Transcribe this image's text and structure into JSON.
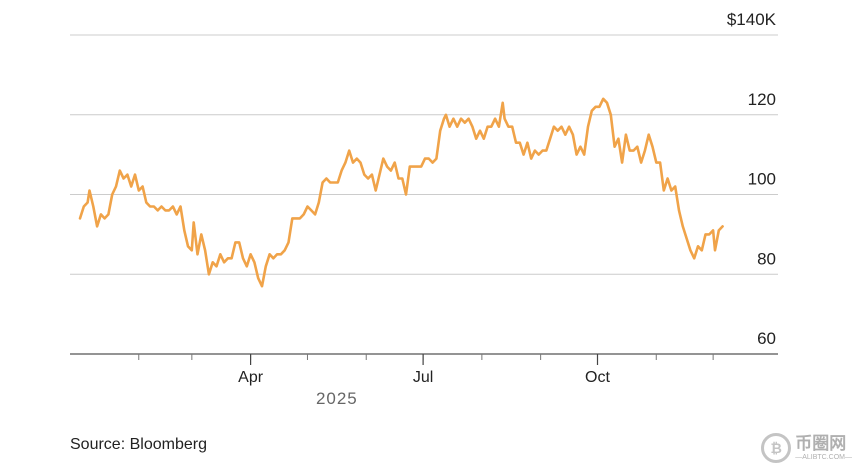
{
  "chart_data": {
    "type": "line",
    "title": "",
    "xlabel": "",
    "ylabel": "",
    "y_unit_prefix": "$",
    "y_unit_suffix": "K",
    "ylim": [
      60,
      140
    ],
    "yticks": [
      60,
      80,
      100,
      120,
      140
    ],
    "ytick_labels": [
      "60",
      "80",
      "100",
      "120",
      "$140K"
    ],
    "grid": true,
    "x_start": "2025-01-01",
    "x_end": "2025-12-31",
    "xtick_labels": [
      "Apr",
      "Jul",
      "Oct"
    ],
    "xtick_dates": [
      "2025-04-01",
      "2025-07-01",
      "2025-10-01"
    ],
    "minor_tick_dates": [
      "2025-02-01",
      "2025-03-01",
      "2025-04-01",
      "2025-05-01",
      "2025-06-01",
      "2025-07-01",
      "2025-08-01",
      "2025-09-01",
      "2025-10-01",
      "2025-11-01",
      "2025-12-01"
    ],
    "year_label": "2025",
    "series": [
      {
        "color": "#f0a349",
        "points": [
          [
            "2025-01-01",
            94
          ],
          [
            "2025-01-03",
            97
          ],
          [
            "2025-01-05",
            98
          ],
          [
            "2025-01-06",
            101
          ],
          [
            "2025-01-08",
            97
          ],
          [
            "2025-01-10",
            92
          ],
          [
            "2025-01-12",
            95
          ],
          [
            "2025-01-14",
            94
          ],
          [
            "2025-01-16",
            95
          ],
          [
            "2025-01-18",
            100
          ],
          [
            "2025-01-20",
            102
          ],
          [
            "2025-01-22",
            106
          ],
          [
            "2025-01-24",
            104
          ],
          [
            "2025-01-26",
            105
          ],
          [
            "2025-01-28",
            102
          ],
          [
            "2025-01-30",
            105
          ],
          [
            "2025-02-01",
            101
          ],
          [
            "2025-02-03",
            102
          ],
          [
            "2025-02-05",
            98
          ],
          [
            "2025-02-07",
            97
          ],
          [
            "2025-02-09",
            97
          ],
          [
            "2025-02-11",
            96
          ],
          [
            "2025-02-13",
            97
          ],
          [
            "2025-02-15",
            96
          ],
          [
            "2025-02-17",
            96
          ],
          [
            "2025-02-19",
            97
          ],
          [
            "2025-02-21",
            95
          ],
          [
            "2025-02-23",
            97
          ],
          [
            "2025-02-25",
            91
          ],
          [
            "2025-02-27",
            87
          ],
          [
            "2025-03-01",
            86
          ],
          [
            "2025-03-02",
            93
          ],
          [
            "2025-03-04",
            85
          ],
          [
            "2025-03-06",
            90
          ],
          [
            "2025-03-08",
            86
          ],
          [
            "2025-03-10",
            80
          ],
          [
            "2025-03-12",
            83
          ],
          [
            "2025-03-14",
            82
          ],
          [
            "2025-03-16",
            85
          ],
          [
            "2025-03-18",
            83
          ],
          [
            "2025-03-20",
            84
          ],
          [
            "2025-03-22",
            84
          ],
          [
            "2025-03-24",
            88
          ],
          [
            "2025-03-26",
            88
          ],
          [
            "2025-03-28",
            84
          ],
          [
            "2025-03-30",
            82
          ],
          [
            "2025-04-01",
            85
          ],
          [
            "2025-04-03",
            83
          ],
          [
            "2025-04-05",
            79
          ],
          [
            "2025-04-07",
            77
          ],
          [
            "2025-04-09",
            82
          ],
          [
            "2025-04-11",
            85
          ],
          [
            "2025-04-13",
            84
          ],
          [
            "2025-04-15",
            85
          ],
          [
            "2025-04-17",
            85
          ],
          [
            "2025-04-19",
            86
          ],
          [
            "2025-04-21",
            88
          ],
          [
            "2025-04-23",
            94
          ],
          [
            "2025-04-25",
            94
          ],
          [
            "2025-04-27",
            94
          ],
          [
            "2025-04-29",
            95
          ],
          [
            "2025-05-01",
            97
          ],
          [
            "2025-05-03",
            96
          ],
          [
            "2025-05-05",
            95
          ],
          [
            "2025-05-07",
            98
          ],
          [
            "2025-05-09",
            103
          ],
          [
            "2025-05-11",
            104
          ],
          [
            "2025-05-13",
            103
          ],
          [
            "2025-05-15",
            103
          ],
          [
            "2025-05-17",
            103
          ],
          [
            "2025-05-19",
            106
          ],
          [
            "2025-05-21",
            108
          ],
          [
            "2025-05-23",
            111
          ],
          [
            "2025-05-25",
            108
          ],
          [
            "2025-05-27",
            109
          ],
          [
            "2025-05-29",
            108
          ],
          [
            "2025-05-31",
            105
          ],
          [
            "2025-06-02",
            104
          ],
          [
            "2025-06-04",
            105
          ],
          [
            "2025-06-06",
            101
          ],
          [
            "2025-06-08",
            105
          ],
          [
            "2025-06-10",
            109
          ],
          [
            "2025-06-12",
            107
          ],
          [
            "2025-06-14",
            106
          ],
          [
            "2025-06-16",
            108
          ],
          [
            "2025-06-18",
            104
          ],
          [
            "2025-06-20",
            104
          ],
          [
            "2025-06-22",
            100
          ],
          [
            "2025-06-24",
            107
          ],
          [
            "2025-06-26",
            107
          ],
          [
            "2025-06-28",
            107
          ],
          [
            "2025-06-30",
            107
          ],
          [
            "2025-07-02",
            109
          ],
          [
            "2025-07-04",
            109
          ],
          [
            "2025-07-06",
            108
          ],
          [
            "2025-07-08",
            109
          ],
          [
            "2025-07-10",
            116
          ],
          [
            "2025-07-12",
            119
          ],
          [
            "2025-07-13",
            120
          ],
          [
            "2025-07-15",
            117
          ],
          [
            "2025-07-17",
            119
          ],
          [
            "2025-07-19",
            117
          ],
          [
            "2025-07-21",
            119
          ],
          [
            "2025-07-23",
            118
          ],
          [
            "2025-07-25",
            119
          ],
          [
            "2025-07-27",
            117
          ],
          [
            "2025-07-29",
            114
          ],
          [
            "2025-07-31",
            116
          ],
          [
            "2025-08-02",
            114
          ],
          [
            "2025-08-04",
            117
          ],
          [
            "2025-08-06",
            117
          ],
          [
            "2025-08-08",
            119
          ],
          [
            "2025-08-10",
            117
          ],
          [
            "2025-08-12",
            123
          ],
          [
            "2025-08-13",
            119
          ],
          [
            "2025-08-15",
            117
          ],
          [
            "2025-08-17",
            117
          ],
          [
            "2025-08-19",
            113
          ],
          [
            "2025-08-21",
            113
          ],
          [
            "2025-08-23",
            110
          ],
          [
            "2025-08-25",
            113
          ],
          [
            "2025-08-27",
            109
          ],
          [
            "2025-08-29",
            111
          ],
          [
            "2025-08-31",
            110
          ],
          [
            "2025-09-02",
            111
          ],
          [
            "2025-09-04",
            111
          ],
          [
            "2025-09-06",
            114
          ],
          [
            "2025-09-08",
            117
          ],
          [
            "2025-09-10",
            116
          ],
          [
            "2025-09-12",
            117
          ],
          [
            "2025-09-14",
            115
          ],
          [
            "2025-09-16",
            117
          ],
          [
            "2025-09-18",
            115
          ],
          [
            "2025-09-20",
            110
          ],
          [
            "2025-09-22",
            112
          ],
          [
            "2025-09-24",
            110
          ],
          [
            "2025-09-26",
            117
          ],
          [
            "2025-09-28",
            121
          ],
          [
            "2025-09-30",
            122
          ],
          [
            "2025-10-02",
            122
          ],
          [
            "2025-10-04",
            124
          ],
          [
            "2025-10-06",
            123
          ],
          [
            "2025-10-08",
            120
          ],
          [
            "2025-10-10",
            112
          ],
          [
            "2025-10-12",
            114
          ],
          [
            "2025-10-14",
            108
          ],
          [
            "2025-10-16",
            115
          ],
          [
            "2025-10-18",
            111
          ],
          [
            "2025-10-20",
            111
          ],
          [
            "2025-10-22",
            112
          ],
          [
            "2025-10-24",
            108
          ],
          [
            "2025-10-26",
            111
          ],
          [
            "2025-10-28",
            115
          ],
          [
            "2025-10-30",
            112
          ],
          [
            "2025-11-01",
            108
          ],
          [
            "2025-11-03",
            108
          ],
          [
            "2025-11-05",
            101
          ],
          [
            "2025-11-07",
            104
          ],
          [
            "2025-11-09",
            101
          ],
          [
            "2025-11-11",
            102
          ],
          [
            "2025-11-13",
            96
          ],
          [
            "2025-11-15",
            92
          ],
          [
            "2025-11-17",
            89
          ],
          [
            "2025-11-19",
            86
          ],
          [
            "2025-11-21",
            84
          ],
          [
            "2025-11-23",
            87
          ],
          [
            "2025-11-25",
            86
          ],
          [
            "2025-11-27",
            90
          ],
          [
            "2025-11-29",
            90
          ],
          [
            "2025-12-01",
            91
          ],
          [
            "2025-12-02",
            86
          ],
          [
            "2025-12-04",
            91
          ],
          [
            "2025-12-06",
            92
          ]
        ]
      }
    ]
  },
  "source_text": "Source: Bloomberg",
  "watermark": {
    "name": "币圈网",
    "url": "—ALIBTC.COM—"
  }
}
